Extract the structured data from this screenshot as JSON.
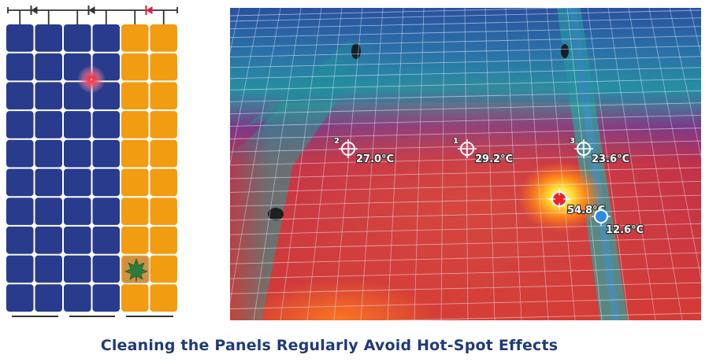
{
  "caption": "Cleaning the Panels Regularly Avoid Hot-Spot Effects",
  "colors": {
    "cell_normal": "#283b8c",
    "cell_affected": "#f29c12",
    "bypass_diode_active": "#d8203a",
    "wire": "#333333",
    "caption": "#1f3a78"
  },
  "panel_diagram": {
    "columns": 6,
    "rows": 10,
    "affected_columns": [
      5,
      6
    ],
    "hot_spot_icon": "glow-hot-spot",
    "shading_icon": "leaf-icon",
    "bypass_diodes": [
      "diode-1",
      "diode-2",
      "diode-3"
    ],
    "active_diode": "diode-3"
  },
  "thermal_image": {
    "markers": [
      {
        "index": "2",
        "temperature": "27.0°C",
        "type": "crosshair"
      },
      {
        "index": "1",
        "temperature": "29.2°C",
        "type": "crosshair"
      },
      {
        "index": "3",
        "temperature": "23.6°C",
        "type": "crosshair"
      },
      {
        "index": "",
        "temperature": "54.8°C",
        "type": "max-hot"
      },
      {
        "index": "",
        "temperature": "12.6°C",
        "type": "min-cold"
      }
    ]
  }
}
